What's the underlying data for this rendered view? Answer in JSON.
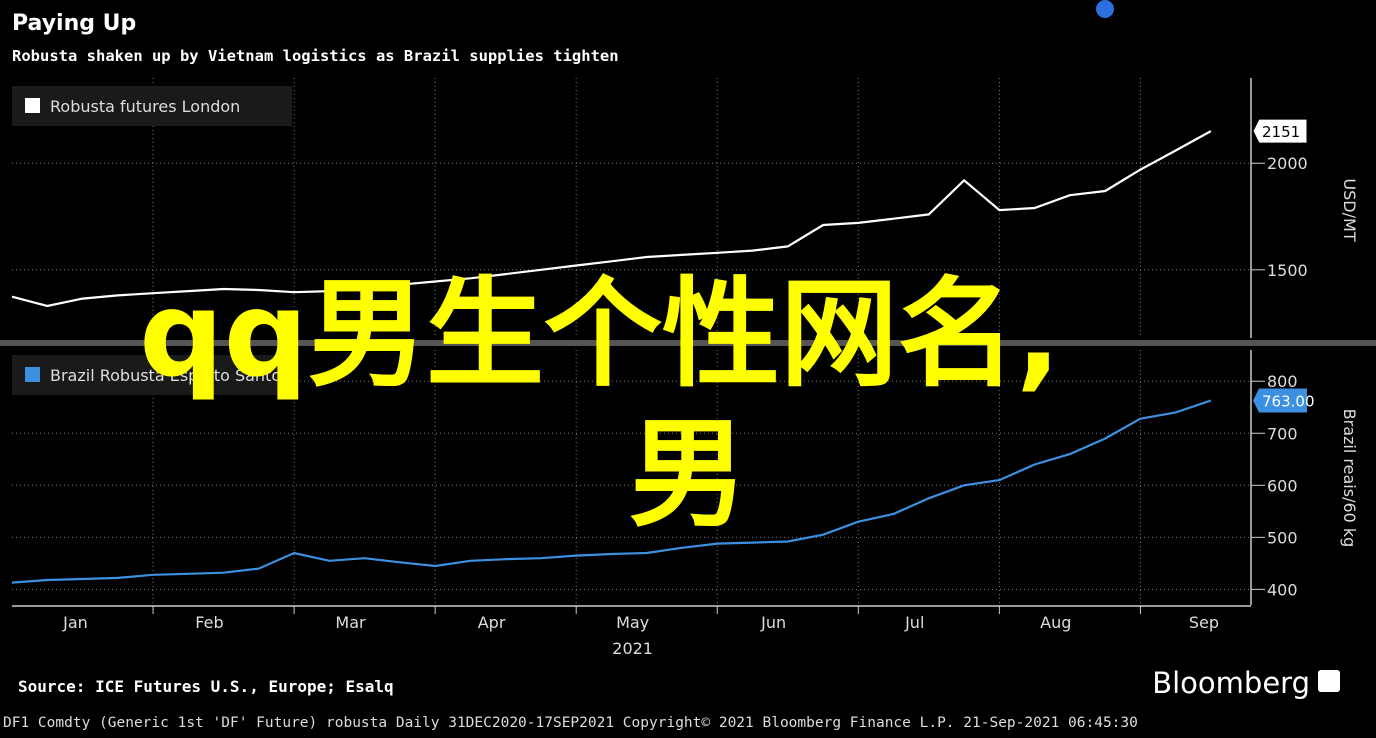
{
  "header": {
    "title": "Paying Up",
    "subtitle": "Robusta shaken up by Vietnam logistics as Brazil supplies tighten"
  },
  "chart_data": [
    {
      "type": "line",
      "x": [
        0,
        0.25,
        0.5,
        0.75,
        1,
        1.25,
        1.5,
        1.75,
        2,
        2.25,
        2.5,
        2.75,
        3,
        3.25,
        3.5,
        3.75,
        4,
        4.25,
        4.5,
        4.75,
        5,
        5.25,
        5.5,
        5.75,
        6,
        6.25,
        6.5,
        6.75,
        7,
        7.25,
        7.5,
        7.75,
        8,
        8.25,
        8.5
      ],
      "xlim": [
        0,
        8.55
      ],
      "xgrid": [
        1,
        2,
        3,
        4,
        5,
        6,
        7,
        8
      ],
      "series": [
        {
          "name": "Robusta futures London",
          "color": "#ffffff",
          "values": [
            1374,
            1330,
            1365,
            1380,
            1390,
            1400,
            1410,
            1405,
            1395,
            1400,
            1415,
            1430,
            1445,
            1460,
            1480,
            1500,
            1520,
            1540,
            1560,
            1570,
            1580,
            1590,
            1610,
            1710,
            1720,
            1740,
            1760,
            1920,
            1780,
            1790,
            1850,
            1870,
            1970,
            2060,
            2151
          ]
        }
      ],
      "ylim": [
        1180,
        2400
      ],
      "yticks": [
        1500,
        2000
      ],
      "y_label": "USD/MT",
      "grid": true
    },
    {
      "type": "line",
      "x": [
        0,
        0.25,
        0.5,
        0.75,
        1,
        1.25,
        1.5,
        1.75,
        2,
        2.25,
        2.5,
        2.75,
        3,
        3.25,
        3.5,
        3.75,
        4,
        4.25,
        4.5,
        4.75,
        5,
        5.25,
        5.5,
        5.75,
        6,
        6.25,
        6.5,
        6.75,
        7,
        7.25,
        7.5,
        7.75,
        8,
        8.25,
        8.5
      ],
      "xlim": [
        0,
        8.55
      ],
      "xgrid": [
        1,
        2,
        3,
        4,
        5,
        6,
        7,
        8
      ],
      "xticks": [
        {
          "value": 0.45,
          "label": "Jan"
        },
        {
          "value": 1.4,
          "label": "Feb"
        },
        {
          "value": 2.4,
          "label": "Mar"
        },
        {
          "value": 3.4,
          "label": "Apr"
        },
        {
          "value": 4.4,
          "label": "May"
        },
        {
          "value": 5.4,
          "label": "Jun"
        },
        {
          "value": 6.4,
          "label": "Jul"
        },
        {
          "value": 7.4,
          "label": "Aug"
        },
        {
          "value": 8.45,
          "label": "Sep"
        }
      ],
      "x_sublabel": "2021",
      "series": [
        {
          "name": "Brazil Robusta Espirito Santo",
          "color": "#3d8fe0",
          "values": [
            413,
            418,
            420,
            422,
            428,
            430,
            432,
            440,
            470,
            455,
            460,
            452,
            445,
            455,
            458,
            460,
            465,
            468,
            470,
            480,
            488,
            490,
            492,
            505,
            530,
            545,
            575,
            600,
            610,
            640,
            660,
            690,
            728,
            740,
            763
          ],
          "value_labels": [
            null,
            null,
            null,
            null,
            null,
            null,
            null,
            null,
            null,
            null,
            null,
            null,
            null,
            null,
            null,
            null,
            null,
            null,
            null,
            null,
            null,
            null,
            null,
            null,
            null,
            null,
            null,
            null,
            null,
            null,
            null,
            null,
            null,
            null,
            "763.00"
          ]
        }
      ],
      "ylim": [
        370,
        860
      ],
      "yticks": [
        400,
        500,
        600,
        700,
        800
      ],
      "y_label": "Brazil reais/60 kg",
      "grid": true
    }
  ],
  "overlay_text": [
    "qq男生个性网名,",
    "男"
  ],
  "source": "Source: ICE Futures U.S., Europe; Esalq",
  "brand": "Bloomberg",
  "footer": "DF1 Comdty (Generic 1st 'DF' Future) robusta  Daily 31DEC2020-17SEP2021  Copyright© 2021 Bloomberg Finance L.P.  21-Sep-2021 06:45:30"
}
